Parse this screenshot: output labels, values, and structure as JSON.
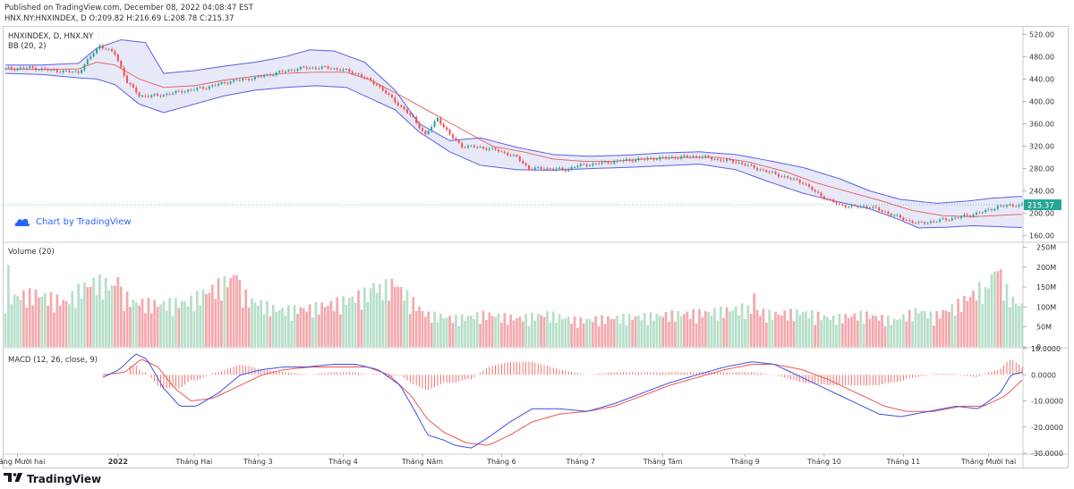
{
  "header": {
    "published": "Published on TradingView.com, December 08, 2022 04:08:47 EST",
    "ohlc": "HNX.NY:HNXINDEX, D O:209.82 H:216.69 L:208.78 C:215.37"
  },
  "panes": {
    "price_title": "HNXINDEX, D, HNX.NY",
    "bb_label": "BB (20, 2)",
    "volume_label": "Volume (20)",
    "macd_label": "MACD (12, 26, close, 9)"
  },
  "byline": "Chart by TradingView",
  "footer": {
    "logo_text": "TradingView"
  },
  "colors": {
    "up": "#26a69a",
    "down": "#ef5350",
    "bb_band": "#5b5fe8",
    "bb_fill": "#e8e9f8",
    "bb_basis": "#e45d5d",
    "vol_up": "#b7dfc9",
    "vol_down": "#f4a9ad",
    "macd_line": "#3f4fe0",
    "signal_line": "#ef5350",
    "hist": "#ef5350",
    "last_price_bg": "#26a69a",
    "byline": "#2962ff"
  },
  "chart_data": [
    {
      "type": "candlestick",
      "title": "HNXINDEX, D, HNX.NY",
      "ylim": [
        150,
        530
      ],
      "yticks": [
        "520.00",
        "480.00",
        "440.00",
        "400.00",
        "360.00",
        "320.00",
        "280.00",
        "240.00",
        "200.00",
        "160.00"
      ],
      "last_price": "215.37",
      "xticks": [
        "Tháng Mười hai",
        "2022",
        "Tháng Hai",
        "Tháng 3",
        "Tháng 4",
        "Tháng Năm",
        "Tháng 6",
        "Tháng 7",
        "Tháng Tám",
        "Tháng 9",
        "Tháng 10",
        "Tháng 11",
        "Tháng Mười hai"
      ],
      "close_path": [
        [
          0,
          458
        ],
        [
          8,
          460
        ],
        [
          16,
          455
        ],
        [
          24,
          452
        ],
        [
          28,
          480
        ],
        [
          31,
          500
        ],
        [
          36,
          485
        ],
        [
          40,
          435
        ],
        [
          44,
          410
        ],
        [
          50,
          410
        ],
        [
          58,
          418
        ],
        [
          66,
          425
        ],
        [
          74,
          436
        ],
        [
          82,
          442
        ],
        [
          90,
          452
        ],
        [
          98,
          460
        ],
        [
          106,
          460
        ],
        [
          112,
          455
        ],
        [
          116,
          448
        ],
        [
          122,
          430
        ],
        [
          128,
          400
        ],
        [
          134,
          370
        ],
        [
          138,
          340
        ],
        [
          142,
          370
        ],
        [
          146,
          340
        ],
        [
          150,
          320
        ],
        [
          156,
          318
        ],
        [
          162,
          312
        ],
        [
          168,
          300
        ],
        [
          172,
          280
        ],
        [
          178,
          280
        ],
        [
          184,
          278
        ],
        [
          188,
          285
        ],
        [
          196,
          290
        ],
        [
          204,
          295
        ],
        [
          212,
          298
        ],
        [
          220,
          300
        ],
        [
          228,
          302
        ],
        [
          234,
          296
        ],
        [
          240,
          292
        ],
        [
          244,
          285
        ],
        [
          250,
          275
        ],
        [
          256,
          265
        ],
        [
          262,
          255
        ],
        [
          266,
          238
        ],
        [
          270,
          225
        ],
        [
          274,
          215
        ],
        [
          278,
          212
        ],
        [
          284,
          212
        ],
        [
          290,
          200
        ],
        [
          296,
          188
        ],
        [
          300,
          182
        ],
        [
          304,
          185
        ],
        [
          310,
          190
        ],
        [
          316,
          196
        ],
        [
          322,
          204
        ],
        [
          326,
          212
        ],
        [
          332,
          215
        ]
      ],
      "overlays": {
        "bollinger": {
          "label": "BB (20, 2)",
          "basis_path": [
            [
              0,
              458
            ],
            [
              12,
              457
            ],
            [
              24,
              458
            ],
            [
              30,
              470
            ],
            [
              36,
              465
            ],
            [
              44,
              440
            ],
            [
              52,
              425
            ],
            [
              62,
              428
            ],
            [
              72,
              438
            ],
            [
              82,
              445
            ],
            [
              92,
              450
            ],
            [
              102,
              452
            ],
            [
              112,
              452
            ],
            [
              120,
              438
            ],
            [
              130,
              410
            ],
            [
              140,
              380
            ],
            [
              150,
              350
            ],
            [
              160,
              320
            ],
            [
              170,
              310
            ],
            [
              180,
              297
            ],
            [
              190,
              293
            ],
            [
              200,
              293
            ],
            [
              210,
              297
            ],
            [
              222,
              300
            ],
            [
              234,
              300
            ],
            [
              244,
              292
            ],
            [
              256,
              275
            ],
            [
              266,
              255
            ],
            [
              276,
              240
            ],
            [
              288,
              222
            ],
            [
              298,
              205
            ],
            [
              308,
              196
            ],
            [
              318,
              194
            ],
            [
              332,
              198
            ]
          ],
          "upper_path": [
            [
              0,
              465
            ],
            [
              12,
              465
            ],
            [
              24,
              468
            ],
            [
              30,
              495
            ],
            [
              38,
              510
            ],
            [
              46,
              505
            ],
            [
              52,
              450
            ],
            [
              62,
              455
            ],
            [
              72,
              463
            ],
            [
              82,
              470
            ],
            [
              92,
              480
            ],
            [
              100,
              492
            ],
            [
              108,
              490
            ],
            [
              118,
              470
            ],
            [
              128,
              420
            ],
            [
              136,
              360
            ],
            [
              146,
              330
            ],
            [
              156,
              335
            ],
            [
              168,
              318
            ],
            [
              180,
              305
            ],
            [
              192,
              302
            ],
            [
              204,
              304
            ],
            [
              216,
              308
            ],
            [
              228,
              310
            ],
            [
              240,
              305
            ],
            [
              250,
              295
            ],
            [
              262,
              282
            ],
            [
              274,
              262
            ],
            [
              284,
              240
            ],
            [
              294,
              225
            ],
            [
              306,
              218
            ],
            [
              316,
              222
            ],
            [
              324,
              227
            ],
            [
              332,
              230
            ]
          ],
          "lower_path": [
            [
              0,
              450
            ],
            [
              12,
              448
            ],
            [
              24,
              442
            ],
            [
              30,
              440
            ],
            [
              36,
              430
            ],
            [
              44,
              395
            ],
            [
              52,
              380
            ],
            [
              62,
              395
            ],
            [
              72,
              410
            ],
            [
              82,
              420
            ],
            [
              92,
              425
            ],
            [
              102,
              428
            ],
            [
              112,
              425
            ],
            [
              118,
              410
            ],
            [
              128,
              385
            ],
            [
              136,
              345
            ],
            [
              146,
              310
            ],
            [
              156,
              286
            ],
            [
              168,
              278
            ],
            [
              180,
              277
            ],
            [
              192,
              280
            ],
            [
              204,
              282
            ],
            [
              216,
              285
            ],
            [
              228,
              288
            ],
            [
              240,
              278
            ],
            [
              250,
              258
            ],
            [
              262,
              236
            ],
            [
              274,
              220
            ],
            [
              284,
              208
            ],
            [
              294,
              188
            ],
            [
              300,
              174
            ],
            [
              308,
              175
            ],
            [
              318,
              178
            ],
            [
              332,
              175
            ]
          ]
        }
      }
    },
    {
      "type": "bar",
      "title": "Volume (20)",
      "ylim": [
        0,
        260
      ],
      "yticks": [
        "250M",
        "200M",
        "150M",
        "100M",
        "50M",
        "0"
      ],
      "unit": "M",
      "values_path": [
        [
          0,
          120
        ],
        [
          10,
          130
        ],
        [
          20,
          110
        ],
        [
          25,
          145
        ],
        [
          30,
          160
        ],
        [
          35,
          150
        ],
        [
          42,
          110
        ],
        [
          50,
          105
        ],
        [
          60,
          110
        ],
        [
          70,
          150
        ],
        [
          75,
          170
        ],
        [
          80,
          115
        ],
        [
          90,
          90
        ],
        [
          100,
          95
        ],
        [
          110,
          110
        ],
        [
          120,
          135
        ],
        [
          128,
          155
        ],
        [
          138,
          80
        ],
        [
          148,
          70
        ],
        [
          158,
          80
        ],
        [
          168,
          70
        ],
        [
          178,
          80
        ],
        [
          188,
          65
        ],
        [
          198,
          70
        ],
        [
          210,
          75
        ],
        [
          220,
          80
        ],
        [
          232,
          85
        ],
        [
          242,
          95
        ],
        [
          252,
          80
        ],
        [
          262,
          85
        ],
        [
          272,
          70
        ],
        [
          282,
          80
        ],
        [
          292,
          65
        ],
        [
          300,
          90
        ],
        [
          305,
          75
        ],
        [
          312,
          100
        ],
        [
          318,
          130
        ],
        [
          322,
          155
        ],
        [
          326,
          190
        ],
        [
          330,
          120
        ],
        [
          334,
          100
        ]
      ],
      "spikes": [
        [
          1,
          205
        ],
        [
          37,
          175
        ],
        [
          76,
          180
        ],
        [
          121,
          160
        ],
        [
          128,
          150
        ],
        [
          246,
          135
        ],
        [
          322,
          150
        ],
        [
          326,
          190
        ]
      ],
      "up_pattern_note": "alternating"
    },
    {
      "type": "line",
      "title": "MACD (12, 26, close, 9)",
      "ylim": [
        -30,
        10
      ],
      "yticks": [
        "10.0000",
        "0.0000",
        "-10.0000",
        "-20.0000",
        "-30.0000"
      ],
      "series": [
        {
          "name": "",
          "role": "macd",
          "path": [
            [
              0,
              -1
            ],
            [
              6,
              2
            ],
            [
              12,
              8
            ],
            [
              16,
              6
            ],
            [
              22,
              -5
            ],
            [
              28,
              -12
            ],
            [
              34,
              -12
            ],
            [
              42,
              -7
            ],
            [
              50,
              0
            ],
            [
              58,
              2
            ],
            [
              66,
              3
            ],
            [
              74,
              3
            ],
            [
              84,
              4
            ],
            [
              92,
              4
            ],
            [
              100,
              2
            ],
            [
              108,
              -4
            ],
            [
              114,
              -15
            ],
            [
              118,
              -23
            ],
            [
              124,
              -25
            ],
            [
              128,
              -27
            ],
            [
              134,
              -28
            ],
            [
              140,
              -24
            ],
            [
              148,
              -18
            ],
            [
              156,
              -13
            ],
            [
              166,
              -13
            ],
            [
              176,
              -14
            ],
            [
              186,
              -11
            ],
            [
              196,
              -7
            ],
            [
              206,
              -3
            ],
            [
              216,
              0
            ],
            [
              226,
              3
            ],
            [
              236,
              5
            ],
            [
              244,
              4
            ],
            [
              252,
              0
            ],
            [
              262,
              -5
            ],
            [
              272,
              -10
            ],
            [
              282,
              -15
            ],
            [
              290,
              -16
            ],
            [
              300,
              -14
            ],
            [
              310,
              -12
            ],
            [
              318,
              -13
            ],
            [
              326,
              -7
            ],
            [
              330,
              0
            ],
            [
              334,
              1
            ]
          ]
        },
        {
          "name": "",
          "role": "signal",
          "path": [
            [
              0,
              0
            ],
            [
              8,
              1
            ],
            [
              14,
              6
            ],
            [
              20,
              3
            ],
            [
              26,
              -5
            ],
            [
              32,
              -10
            ],
            [
              40,
              -9
            ],
            [
              50,
              -4
            ],
            [
              58,
              0
            ],
            [
              66,
              2
            ],
            [
              76,
              3
            ],
            [
              86,
              3
            ],
            [
              96,
              3
            ],
            [
              104,
              0
            ],
            [
              112,
              -8
            ],
            [
              118,
              -17
            ],
            [
              124,
              -22
            ],
            [
              132,
              -26
            ],
            [
              140,
              -27
            ],
            [
              148,
              -23
            ],
            [
              156,
              -18
            ],
            [
              166,
              -15
            ],
            [
              176,
              -14
            ],
            [
              186,
              -12
            ],
            [
              196,
              -8
            ],
            [
              206,
              -4
            ],
            [
              216,
              -1
            ],
            [
              226,
              2
            ],
            [
              236,
              4
            ],
            [
              244,
              4
            ],
            [
              254,
              2
            ],
            [
              264,
              -2
            ],
            [
              274,
              -7
            ],
            [
              284,
              -12
            ],
            [
              292,
              -14
            ],
            [
              302,
              -14
            ],
            [
              312,
              -12
            ],
            [
              320,
              -12
            ],
            [
              328,
              -8
            ],
            [
              334,
              -2
            ]
          ]
        }
      ]
    }
  ]
}
